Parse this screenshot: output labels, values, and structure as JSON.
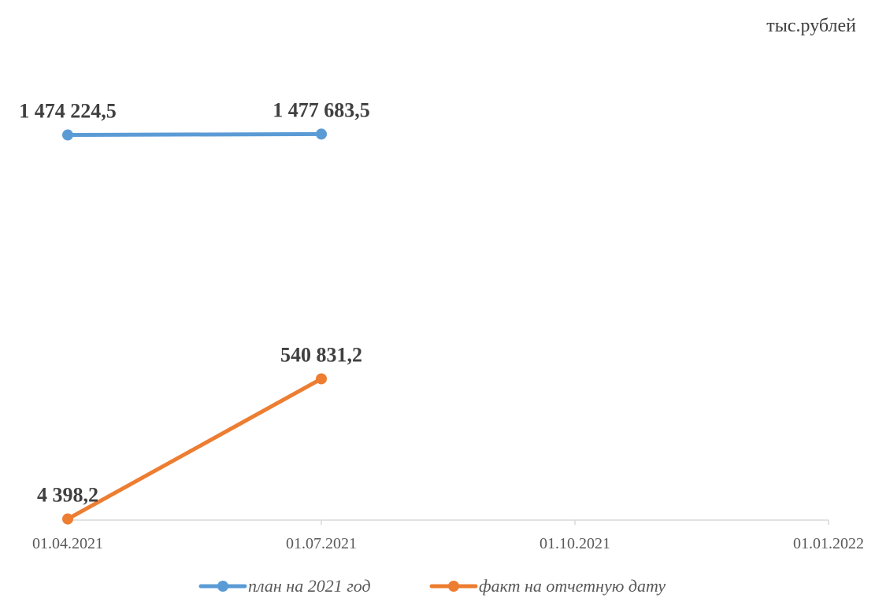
{
  "unit_label": "тыс.рублей",
  "chart_data": {
    "type": "line",
    "x": [
      "01.04.2021",
      "01.07.2021",
      "01.10.2021",
      "01.01.2022"
    ],
    "series": [
      {
        "name": "план на 2021 год",
        "color": "#5B9BD5",
        "values": [
          1474224.5,
          1477683.5,
          null,
          null
        ],
        "labels": [
          "1 474 224,5",
          "1 477 683,5",
          null,
          null
        ]
      },
      {
        "name": "факт на отчетную дату",
        "color": "#ED7D31",
        "values": [
          4398.2,
          540831.2,
          null,
          null
        ],
        "labels": [
          "4 398,2",
          "540 831,2",
          null,
          null
        ]
      }
    ],
    "ylim": [
      0,
      1600000
    ],
    "grid": false,
    "legend_position": "bottom",
    "title": "",
    "xlabel": "",
    "ylabel": ""
  }
}
